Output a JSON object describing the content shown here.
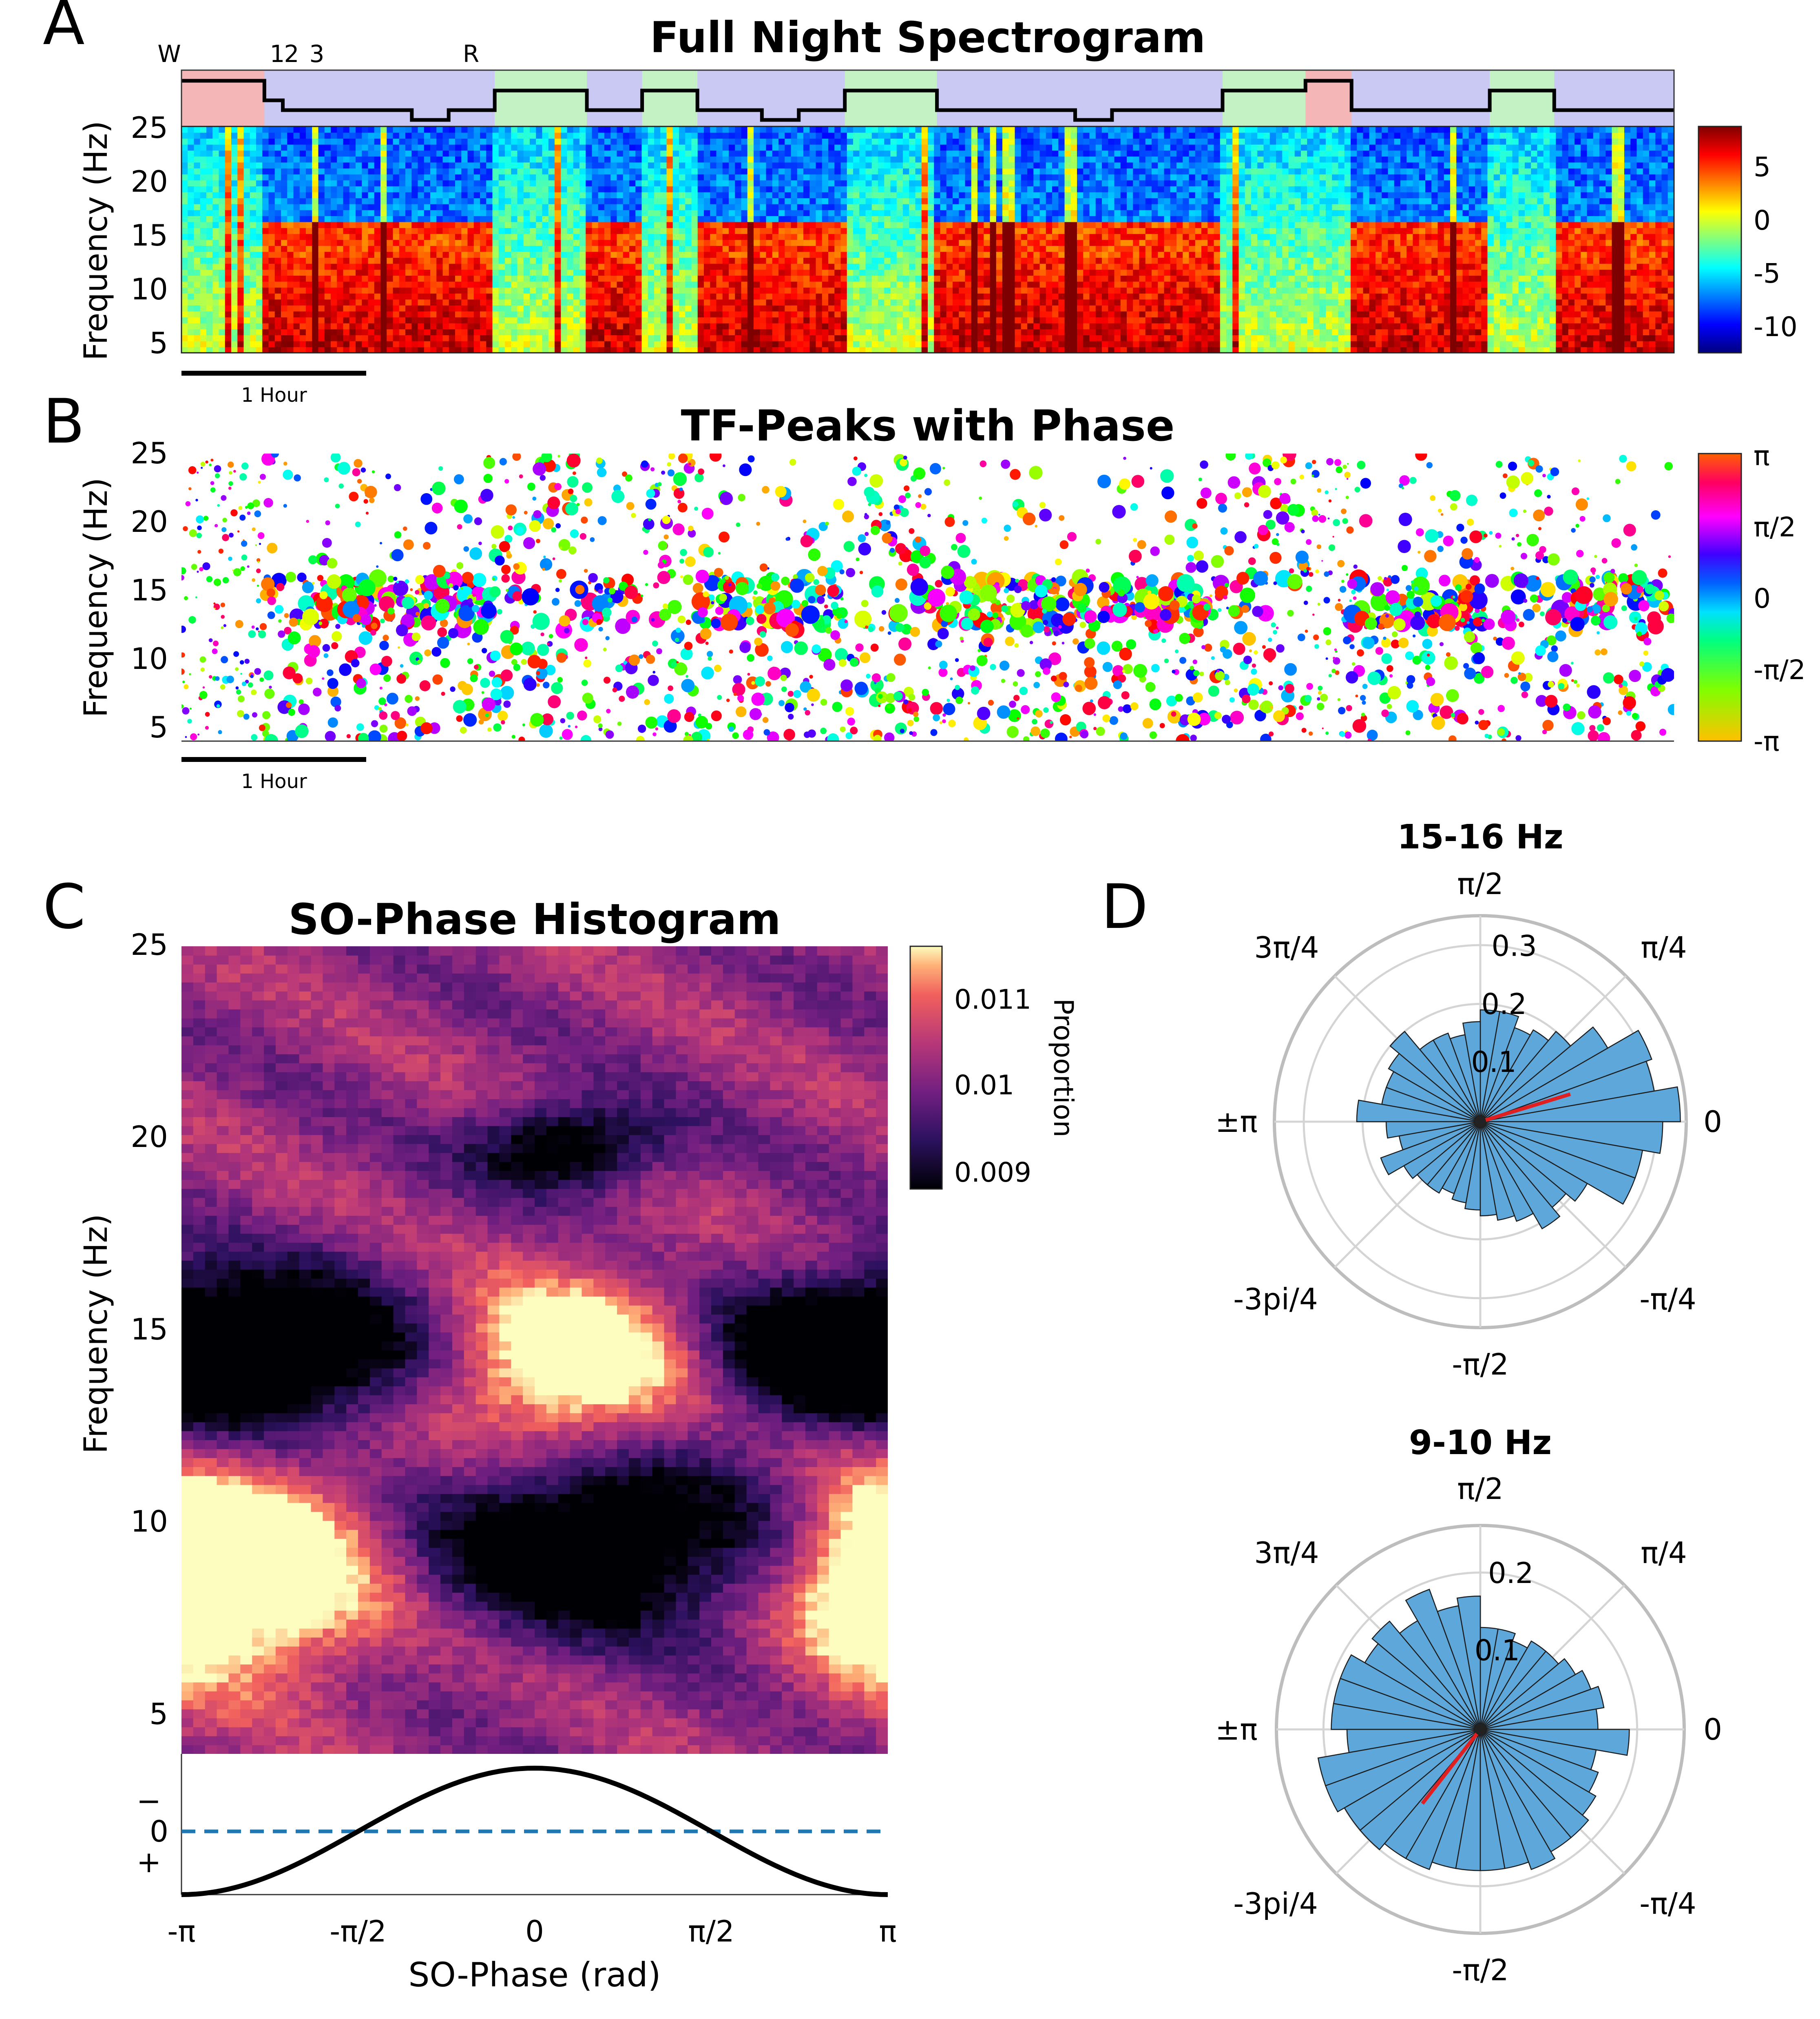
{
  "panels": {
    "A": {
      "letter": "A",
      "title": "Full Night Spectrogram",
      "ylabel": "Frequency (Hz)",
      "yticks": [
        "5",
        "10",
        "15",
        "20",
        "25"
      ],
      "stage_labels": [
        "W",
        "1",
        "2",
        "3",
        "R"
      ],
      "colorbar_ticks": [
        "5",
        "0",
        "-5",
        "-10"
      ],
      "scalebar": "1 Hour"
    },
    "B": {
      "letter": "B",
      "title": "TF-Peaks with Phase",
      "ylabel": "Frequency (Hz)",
      "yticks": [
        "5",
        "10",
        "15",
        "20",
        "25"
      ],
      "colorbar_ticks": [
        "π",
        "π/2",
        "0",
        "-π/2",
        "-π"
      ],
      "scalebar": "1 Hour"
    },
    "C": {
      "letter": "C",
      "title": "SO-Phase Histogram",
      "ylabel": "Frequency (Hz)",
      "yticks": [
        "5",
        "10",
        "15",
        "20",
        "25"
      ],
      "xlabel": "SO-Phase (rad)",
      "xticks": [
        "-π",
        "-π/2",
        "0",
        "π/2",
        "π"
      ],
      "colorbar_label": "Proportion",
      "colorbar_ticks": [
        "0.011",
        "0.01",
        "0.009"
      ],
      "so_marks": [
        "−",
        "0",
        "+"
      ]
    },
    "D": {
      "letter": "D",
      "angle_labels": [
        "π/2",
        "π/4",
        "0",
        "-π/4",
        "-π/2",
        "-3pi/4",
        "±π",
        "3π/4"
      ]
    }
  },
  "colors": {
    "wake": "#f4b6b6",
    "rem": "#c4f2c4",
    "nrem": "#c9c9f4",
    "polar_bars": "#5ea7da",
    "mean_vector": "#e02020",
    "so_zero_line": "#1f77b4"
  },
  "chart_data": [
    {
      "type": "heatmap",
      "panel": "A",
      "title": "Full Night Spectrogram",
      "ylabel": "Frequency (Hz)",
      "ylim": [
        4,
        25
      ],
      "colorbar_range": [
        -12,
        8
      ],
      "hypnogram_stage_order": [
        "W",
        "R",
        "1",
        "2",
        "3"
      ],
      "hypnogram": [
        {
          "start": 0.0,
          "end": 0.9,
          "stage": "W"
        },
        {
          "start": 0.9,
          "end": 1.1,
          "stage": "1"
        },
        {
          "start": 1.1,
          "end": 2.5,
          "stage": "2"
        },
        {
          "start": 2.5,
          "end": 2.9,
          "stage": "3"
        },
        {
          "start": 2.9,
          "end": 3.4,
          "stage": "2"
        },
        {
          "start": 3.4,
          "end": 4.4,
          "stage": "R"
        },
        {
          "start": 4.4,
          "end": 5.0,
          "stage": "2"
        },
        {
          "start": 5.0,
          "end": 5.6,
          "stage": "R"
        },
        {
          "start": 5.6,
          "end": 6.3,
          "stage": "2"
        },
        {
          "start": 6.3,
          "end": 6.7,
          "stage": "3"
        },
        {
          "start": 6.7,
          "end": 7.2,
          "stage": "2"
        },
        {
          "start": 7.2,
          "end": 8.2,
          "stage": "R"
        },
        {
          "start": 8.2,
          "end": 9.7,
          "stage": "2"
        },
        {
          "start": 9.7,
          "end": 10.1,
          "stage": "3"
        },
        {
          "start": 10.1,
          "end": 11.3,
          "stage": "2"
        },
        {
          "start": 11.3,
          "end": 12.2,
          "stage": "R"
        },
        {
          "start": 12.2,
          "end": 12.7,
          "stage": "W"
        },
        {
          "start": 12.7,
          "end": 14.2,
          "stage": "2"
        },
        {
          "start": 14.2,
          "end": 14.9,
          "stage": "R"
        },
        {
          "start": 14.9,
          "end": 16.2,
          "stage": "2"
        }
      ]
    },
    {
      "type": "scatter",
      "panel": "B",
      "title": "TF-Peaks with Phase",
      "ylabel": "Frequency (Hz)",
      "ylim": [
        4,
        25
      ],
      "colorbar_range": [
        -3.1416,
        3.1416
      ],
      "colormap": "circular hue"
    },
    {
      "type": "heatmap",
      "panel": "C",
      "title": "SO-Phase Histogram",
      "xlabel": "SO-Phase (rad)",
      "ylabel": "Frequency (Hz)",
      "xlim": [
        -3.1416,
        3.1416
      ],
      "ylim": [
        4,
        25
      ],
      "colorbar_label": "Proportion",
      "colorbar_range": [
        0.0088,
        0.0115
      ],
      "blobs": [
        {
          "phase": 0.3,
          "freq": 14.2,
          "level": 1.0,
          "sphase": 0.85,
          "sfreq": 1.5
        },
        {
          "phase": -2.4,
          "freq": 8.8,
          "level": 1.0,
          "sphase": 0.8,
          "sfreq": 1.8
        },
        {
          "phase": 3.0,
          "freq": 8.5,
          "level": 0.7,
          "sphase": 0.5,
          "sfreq": 1.8
        },
        {
          "phase": 0.5,
          "freq": 9.5,
          "level": -1.0,
          "sphase": 1.1,
          "sfreq": 1.6
        },
        {
          "phase": -2.2,
          "freq": 14.5,
          "level": -1.0,
          "sphase": 1.0,
          "sfreq": 1.4
        },
        {
          "phase": 2.5,
          "freq": 14.5,
          "level": -0.9,
          "sphase": 0.8,
          "sfreq": 1.3
        },
        {
          "phase": 0.3,
          "freq": 19.8,
          "level": -0.8,
          "sphase": 0.6,
          "sfreq": 0.8
        }
      ]
    },
    {
      "type": "bar",
      "subtype": "polar-histogram",
      "panel": "D",
      "title": "15-16 Hz",
      "rlim": [
        0,
        0.35
      ],
      "rticks": [
        0.1,
        0.2,
        0.3
      ],
      "mean_vector": {
        "angle_deg": 17,
        "length": 0.16
      },
      "values": [
        0.34,
        0.3,
        0.31,
        0.25,
        0.2,
        0.18,
        0.17,
        0.19,
        0.19,
        0.17,
        0.15,
        0.16,
        0.16,
        0.2,
        0.18,
        0.17,
        0.17,
        0.21,
        0.16,
        0.14,
        0.18,
        0.15,
        0.14,
        0.14,
        0.13,
        0.14,
        0.15,
        0.16,
        0.17,
        0.18,
        0.21,
        0.19,
        0.21,
        0.28,
        0.28,
        0.31
      ]
    },
    {
      "type": "bar",
      "subtype": "polar-histogram",
      "panel": "D",
      "title": "9-10 Hz",
      "rlim": [
        0,
        0.26
      ],
      "rticks": [
        0.1,
        0.2
      ],
      "mean_vector": {
        "angle_deg": 232,
        "length": 0.12
      },
      "values": [
        0.15,
        0.16,
        0.15,
        0.14,
        0.13,
        0.13,
        0.12,
        0.13,
        0.13,
        0.17,
        0.16,
        0.19,
        0.16,
        0.18,
        0.17,
        0.19,
        0.19,
        0.19,
        0.17,
        0.21,
        0.21,
        0.2,
        0.2,
        0.19,
        0.19,
        0.18,
        0.18,
        0.18,
        0.18,
        0.19,
        0.18,
        0.18,
        0.17,
        0.16,
        0.15,
        0.19
      ]
    }
  ]
}
